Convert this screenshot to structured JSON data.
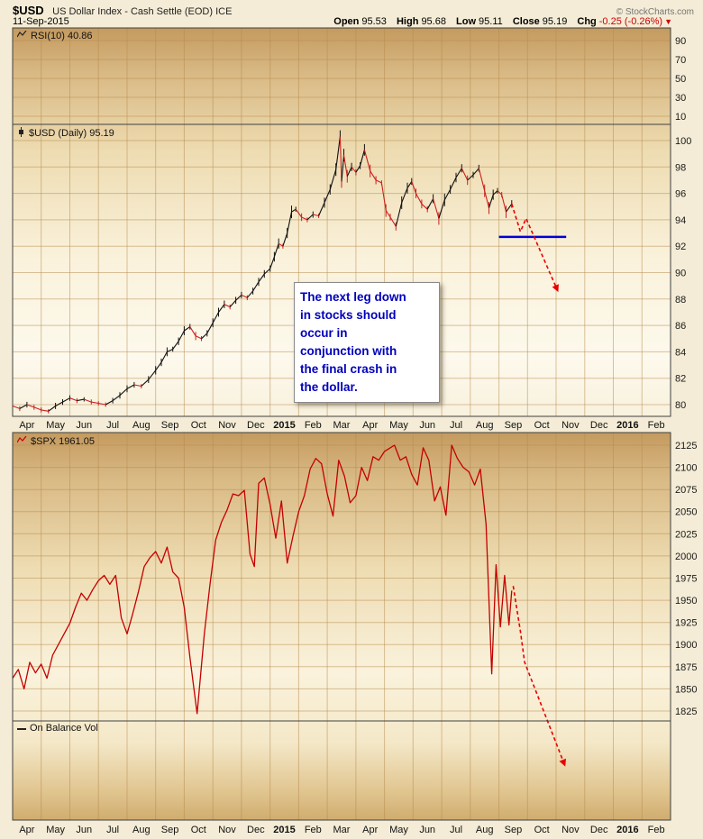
{
  "header": {
    "symbol": "$USD",
    "description": "US Dollar Index - Cash Settle (EOD) ICE",
    "source": "© StockCharts.com",
    "date": "11-Sep-2015",
    "quote": {
      "open_label": "Open",
      "open": "95.53",
      "high_label": "High",
      "high": "95.68",
      "low_label": "Low",
      "low": "95.11",
      "close_label": "Close",
      "close": "95.19",
      "chg_label": "Chg",
      "chg": "-0.25 (-0.26%)",
      "chg_arrow": "▼"
    }
  },
  "annotation": {
    "lines": [
      "The next leg down",
      "in stocks should",
      "occur in",
      "conjunction with",
      "the final crash in",
      "the dollar."
    ],
    "color": "#0000bd"
  },
  "chart_data": {
    "x_axis": {
      "categories": [
        "Apr",
        "May",
        "Jun",
        "Jul",
        "Aug",
        "Sep",
        "Oct",
        "Nov",
        "Dec",
        "2015",
        "Feb",
        "Mar",
        "Apr",
        "May",
        "Jun",
        "Jul",
        "Aug",
        "Sep",
        "Oct",
        "Nov",
        "Dec",
        "2016",
        "Feb"
      ]
    },
    "colors": {
      "candle_up": "#111111",
      "candle_down": "#cc2020",
      "spx_line": "#c40000",
      "projection": "#e80000",
      "support": "#0000d8",
      "grid": "#b5894c"
    },
    "panels": [
      {
        "id": "rsi",
        "type": "line",
        "label": "RSI(10) 40.86",
        "value": 40.86,
        "ylim": [
          0,
          100
        ],
        "yticks": [
          90,
          70,
          50,
          30,
          10
        ],
        "points": []
      },
      {
        "id": "usd",
        "type": "candlestick",
        "label": "$USD (Daily) 95.19",
        "value": 95.19,
        "ylim": [
          79,
          101.5
        ],
        "yticks": [
          100,
          98,
          96,
          94,
          92,
          90,
          88,
          86,
          84,
          82,
          80
        ],
        "points": [
          [
            0.0,
            79.9
          ],
          [
            0.25,
            79.7
          ],
          [
            0.5,
            80.0
          ],
          [
            0.75,
            79.8
          ],
          [
            1.0,
            79.6
          ],
          [
            1.25,
            79.5
          ],
          [
            1.5,
            79.9
          ],
          [
            1.75,
            80.2
          ],
          [
            2.0,
            80.5
          ],
          [
            2.25,
            80.3
          ],
          [
            2.5,
            80.4
          ],
          [
            2.75,
            80.2
          ],
          [
            3.0,
            80.1
          ],
          [
            3.25,
            80.0
          ],
          [
            3.5,
            80.3
          ],
          [
            3.75,
            80.7
          ],
          [
            4.0,
            81.2
          ],
          [
            4.25,
            81.5
          ],
          [
            4.5,
            81.4
          ],
          [
            4.75,
            81.9
          ],
          [
            5.0,
            82.6
          ],
          [
            5.2,
            83.2
          ],
          [
            5.4,
            84.0
          ],
          [
            5.6,
            84.2
          ],
          [
            5.8,
            84.8
          ],
          [
            6.0,
            85.6
          ],
          [
            6.2,
            85.9
          ],
          [
            6.4,
            85.2
          ],
          [
            6.6,
            85.0
          ],
          [
            6.8,
            85.4
          ],
          [
            7.0,
            86.2
          ],
          [
            7.2,
            87.0
          ],
          [
            7.4,
            87.6
          ],
          [
            7.6,
            87.4
          ],
          [
            7.8,
            87.9
          ],
          [
            8.0,
            88.3
          ],
          [
            8.2,
            88.1
          ],
          [
            8.4,
            88.6
          ],
          [
            8.6,
            89.3
          ],
          [
            8.8,
            89.9
          ],
          [
            9.0,
            90.3
          ],
          [
            9.15,
            91.2
          ],
          [
            9.3,
            92.2
          ],
          [
            9.45,
            92.0
          ],
          [
            9.6,
            93.0
          ],
          [
            9.75,
            94.6
          ],
          [
            9.9,
            94.8
          ],
          [
            10.1,
            94.2
          ],
          [
            10.3,
            94.0
          ],
          [
            10.5,
            94.4
          ],
          [
            10.7,
            94.3
          ],
          [
            10.9,
            95.3
          ],
          [
            11.1,
            96.3
          ],
          [
            11.3,
            97.8
          ],
          [
            11.45,
            100.3
          ],
          [
            11.5,
            96.9
          ],
          [
            11.58,
            98.9
          ],
          [
            11.7,
            97.3
          ],
          [
            11.85,
            98.0
          ],
          [
            12.0,
            97.6
          ],
          [
            12.15,
            98.1
          ],
          [
            12.3,
            99.3
          ],
          [
            12.5,
            97.7
          ],
          [
            12.7,
            97.0
          ],
          [
            12.9,
            96.8
          ],
          [
            13.05,
            94.7
          ],
          [
            13.2,
            94.2
          ],
          [
            13.4,
            93.5
          ],
          [
            13.6,
            95.3
          ],
          [
            13.8,
            96.4
          ],
          [
            13.95,
            96.9
          ],
          [
            14.1,
            96.0
          ],
          [
            14.3,
            95.2
          ],
          [
            14.5,
            94.8
          ],
          [
            14.7,
            95.6
          ],
          [
            14.9,
            94.1
          ],
          [
            15.1,
            95.5
          ],
          [
            15.3,
            96.3
          ],
          [
            15.5,
            97.2
          ],
          [
            15.7,
            97.9
          ],
          [
            15.9,
            97.0
          ],
          [
            16.1,
            97.4
          ],
          [
            16.3,
            97.9
          ],
          [
            16.5,
            96.2
          ],
          [
            16.65,
            94.9
          ],
          [
            16.8,
            95.9
          ],
          [
            16.95,
            96.2
          ],
          [
            17.1,
            95.9
          ],
          [
            17.25,
            94.6
          ],
          [
            17.45,
            95.2
          ]
        ],
        "support_line": {
          "from_month": 17.0,
          "to_month": 19.35,
          "value": 92.7
        },
        "projection": {
          "style": "dashed",
          "points": [
            [
              17.45,
              95.2
            ],
            [
              17.75,
              93.1
            ],
            [
              17.95,
              94.1
            ],
            [
              19.0,
              88.9
            ]
          ]
        }
      },
      {
        "id": "spx",
        "type": "line",
        "label": "$SPX 1961.05",
        "value": 1961.05,
        "ylim": [
          1810,
          2140
        ],
        "yticks": [
          2125,
          2100,
          2075,
          2050,
          2025,
          2000,
          1975,
          1950,
          1925,
          1900,
          1875,
          1850,
          1825
        ],
        "points": [
          [
            0.0,
            1862
          ],
          [
            0.2,
            1872
          ],
          [
            0.4,
            1850
          ],
          [
            0.6,
            1880
          ],
          [
            0.8,
            1868
          ],
          [
            1.0,
            1878
          ],
          [
            1.2,
            1862
          ],
          [
            1.4,
            1888
          ],
          [
            1.6,
            1900
          ],
          [
            1.8,
            1912
          ],
          [
            2.0,
            1924
          ],
          [
            2.2,
            1942
          ],
          [
            2.4,
            1958
          ],
          [
            2.6,
            1950
          ],
          [
            2.8,
            1962
          ],
          [
            3.0,
            1972
          ],
          [
            3.2,
            1978
          ],
          [
            3.4,
            1968
          ],
          [
            3.6,
            1978
          ],
          [
            3.8,
            1930
          ],
          [
            4.0,
            1912
          ],
          [
            4.2,
            1935
          ],
          [
            4.4,
            1960
          ],
          [
            4.6,
            1988
          ],
          [
            4.8,
            1998
          ],
          [
            5.0,
            2005
          ],
          [
            5.2,
            1992
          ],
          [
            5.4,
            2010
          ],
          [
            5.6,
            1982
          ],
          [
            5.8,
            1975
          ],
          [
            6.0,
            1942
          ],
          [
            6.2,
            1885
          ],
          [
            6.45,
            1822
          ],
          [
            6.7,
            1912
          ],
          [
            6.9,
            1968
          ],
          [
            7.1,
            2018
          ],
          [
            7.3,
            2038
          ],
          [
            7.5,
            2052
          ],
          [
            7.7,
            2070
          ],
          [
            7.9,
            2068
          ],
          [
            8.1,
            2074
          ],
          [
            8.3,
            2002
          ],
          [
            8.45,
            1988
          ],
          [
            8.6,
            2082
          ],
          [
            8.8,
            2088
          ],
          [
            9.0,
            2058
          ],
          [
            9.2,
            2020
          ],
          [
            9.4,
            2062
          ],
          [
            9.6,
            1992
          ],
          [
            9.8,
            2022
          ],
          [
            10.0,
            2050
          ],
          [
            10.2,
            2068
          ],
          [
            10.4,
            2098
          ],
          [
            10.6,
            2110
          ],
          [
            10.8,
            2104
          ],
          [
            11.0,
            2070
          ],
          [
            11.2,
            2045
          ],
          [
            11.4,
            2108
          ],
          [
            11.6,
            2090
          ],
          [
            11.8,
            2060
          ],
          [
            12.0,
            2068
          ],
          [
            12.2,
            2100
          ],
          [
            12.4,
            2085
          ],
          [
            12.6,
            2112
          ],
          [
            12.8,
            2108
          ],
          [
            13.0,
            2118
          ],
          [
            13.2,
            2122
          ],
          [
            13.35,
            2125
          ],
          [
            13.55,
            2108
          ],
          [
            13.75,
            2112
          ],
          [
            13.95,
            2092
          ],
          [
            14.15,
            2080
          ],
          [
            14.35,
            2122
          ],
          [
            14.55,
            2108
          ],
          [
            14.75,
            2062
          ],
          [
            14.95,
            2078
          ],
          [
            15.15,
            2046
          ],
          [
            15.35,
            2125
          ],
          [
            15.55,
            2110
          ],
          [
            15.75,
            2100
          ],
          [
            15.95,
            2095
          ],
          [
            16.15,
            2080
          ],
          [
            16.35,
            2098
          ],
          [
            16.55,
            2036
          ],
          [
            16.75,
            1867
          ],
          [
            16.9,
            1990
          ],
          [
            17.05,
            1920
          ],
          [
            17.2,
            1978
          ],
          [
            17.35,
            1922
          ],
          [
            17.45,
            1961
          ]
        ],
        "projection": {
          "style": "dashed",
          "points": [
            [
              17.5,
              1966
            ],
            [
              17.75,
              1915
            ],
            [
              17.9,
              1880
            ],
            [
              19.25,
              1768
            ]
          ]
        }
      },
      {
        "id": "obv",
        "type": "line",
        "label": "On Balance Vol",
        "yticks": [],
        "points": []
      }
    ]
  }
}
